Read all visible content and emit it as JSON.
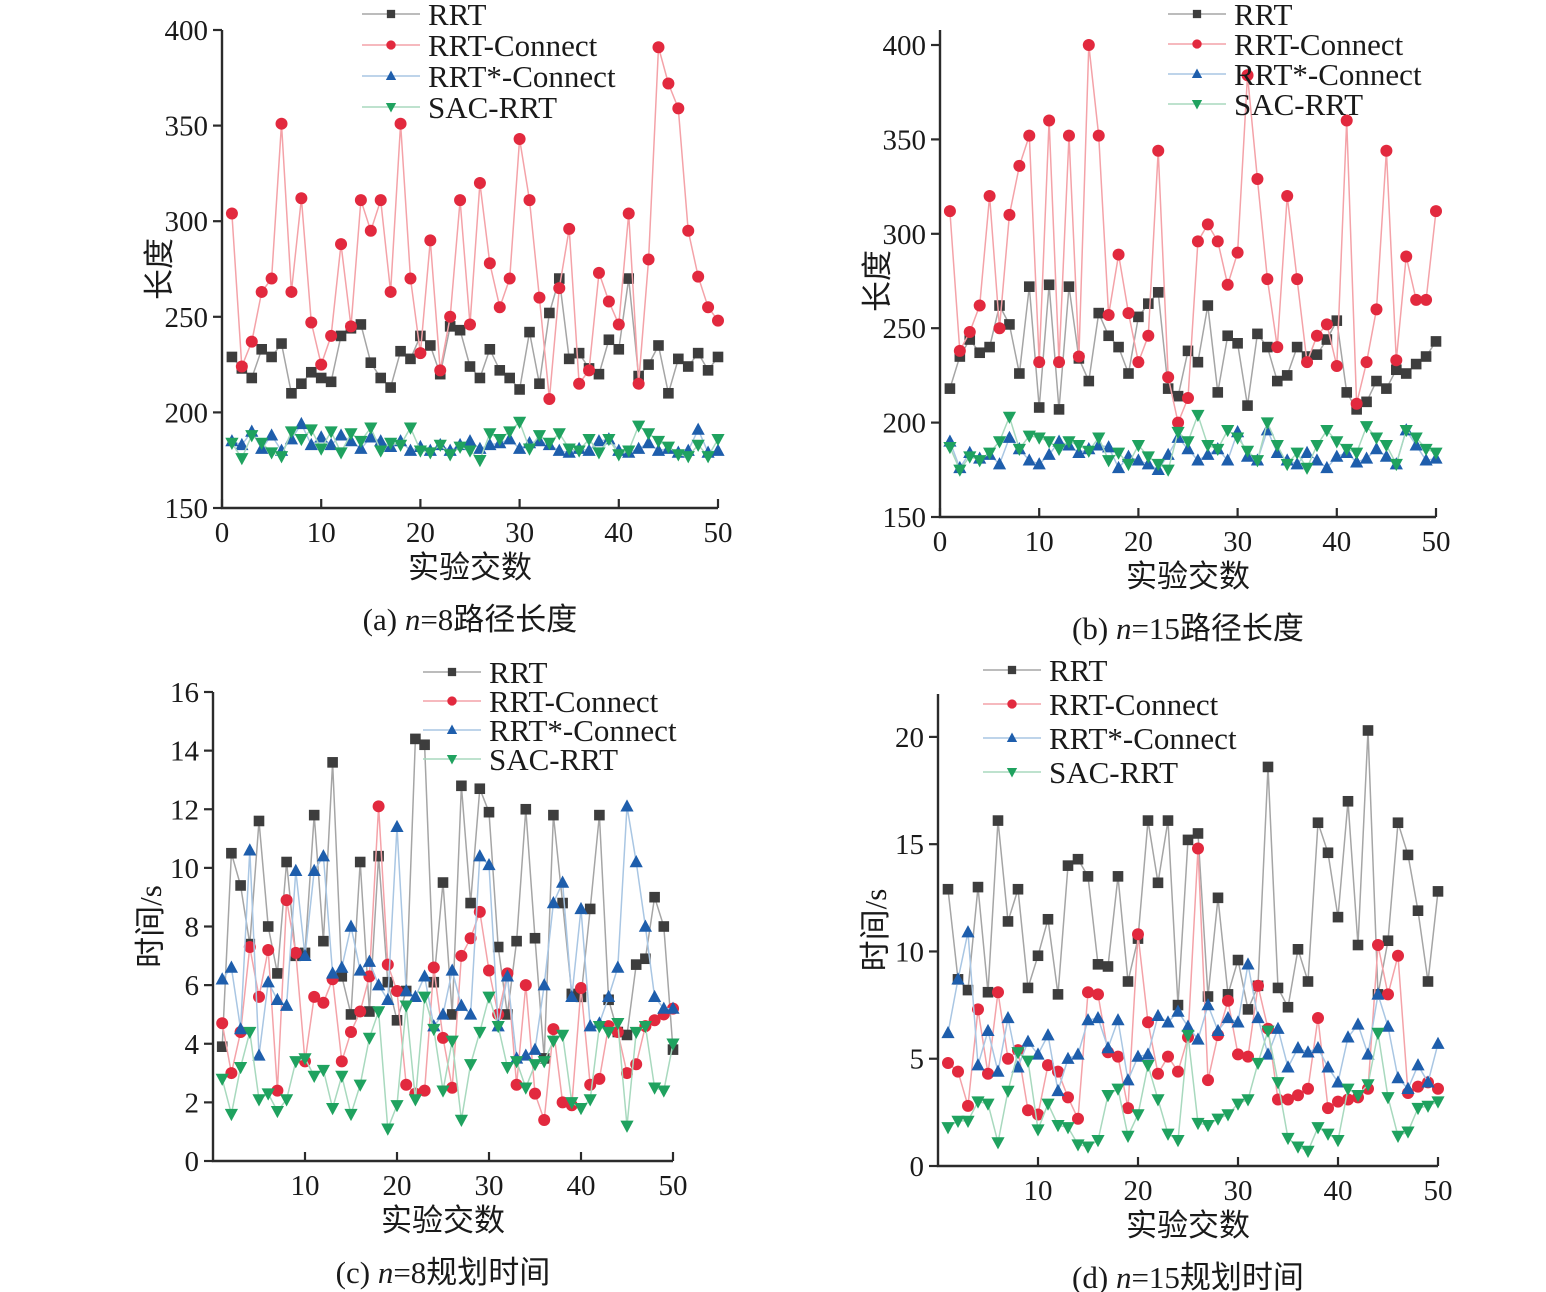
{
  "figure": {
    "background": "#ffffff",
    "legend_labels": [
      "RRT",
      "RRT-Connect",
      "RRT*-Connect",
      "SAC-RRT"
    ],
    "series_styles": [
      {
        "name": "RRT",
        "marker": "square",
        "marker_color": "#3d3d3d",
        "line_color": "#a5a5a5"
      },
      {
        "name": "RRT-Connect",
        "marker": "circle",
        "marker_color": "#e2293e",
        "line_color": "#f4a2a8"
      },
      {
        "name": "RRT*-Connect",
        "marker": "triangle-up",
        "marker_color": "#1e5eac",
        "line_color": "#a9c6e3"
      },
      {
        "name": "SAC-RRT",
        "marker": "triangle-down",
        "marker_color": "#1fa25f",
        "line_color": "#a8d9be"
      }
    ],
    "axis_color": "#2b2b2b"
  },
  "chart_data": [
    {
      "id": "a",
      "type": "line",
      "caption": {
        "prefix": "(a) ",
        "variable": "n",
        "suffix": "=8路径长度"
      },
      "xlabel": "实验交数",
      "ylabel": "长度",
      "x_start": 1,
      "xlim": [
        0,
        50
      ],
      "ylim": [
        150,
        400
      ],
      "xticks": [
        0,
        10,
        20,
        30,
        40,
        50
      ],
      "yticks": [
        150,
        200,
        250,
        300,
        350,
        400
      ],
      "series": [
        {
          "name": "RRT",
          "values": [
            229,
            223,
            218,
            233,
            229,
            236,
            210,
            215,
            221,
            218,
            216,
            240,
            244,
            246,
            226,
            218,
            213,
            232,
            228,
            240,
            235,
            220,
            245,
            243,
            224,
            218,
            233,
            222,
            218,
            212,
            242,
            215,
            252,
            270,
            228,
            231,
            223,
            220,
            238,
            233,
            270,
            219,
            225,
            235,
            210,
            228,
            224,
            231,
            222,
            229
          ]
        },
        {
          "name": "RRT-Connect",
          "values": [
            304,
            224,
            237,
            263,
            270,
            351,
            263,
            312,
            247,
            225,
            240,
            288,
            245,
            311,
            295,
            311,
            263,
            351,
            270,
            231,
            290,
            222,
            250,
            311,
            246,
            320,
            278,
            255,
            270,
            343,
            311,
            260,
            207,
            265,
            296,
            215,
            222,
            273,
            258,
            246,
            304,
            215,
            280,
            391,
            372,
            359,
            295,
            271,
            255,
            248
          ]
        },
        {
          "name": "RRT*-Connect",
          "values": [
            185,
            183,
            190,
            181,
            188,
            180,
            186,
            194,
            183,
            187,
            183,
            188,
            185,
            181,
            187,
            185,
            182,
            185,
            180,
            182,
            180,
            183,
            180,
            183,
            185,
            181,
            183,
            184,
            186,
            181,
            184,
            185,
            183,
            180,
            179,
            181,
            180,
            185,
            186,
            180,
            179,
            181,
            184,
            180,
            181,
            179,
            180,
            191,
            179,
            180
          ]
        },
        {
          "name": "SAC-RRT",
          "values": [
            184,
            176,
            188,
            184,
            179,
            177,
            190,
            186,
            191,
            181,
            190,
            179,
            189,
            185,
            192,
            180,
            184,
            183,
            192,
            180,
            179,
            183,
            178,
            182,
            180,
            175,
            189,
            186,
            190,
            195,
            181,
            188,
            184,
            189,
            181,
            180,
            186,
            179,
            186,
            178,
            180,
            193,
            189,
            185,
            182,
            178,
            177,
            183,
            177,
            186
          ]
        }
      ]
    },
    {
      "id": "b",
      "type": "line",
      "caption": {
        "prefix": "(b) ",
        "variable": "n",
        "suffix": "=15路径长度"
      },
      "xlabel": "实验交数",
      "ylabel": "长度",
      "x_start": 1,
      "xlim": [
        0,
        50
      ],
      "ylim": [
        150,
        400
      ],
      "xticks": [
        0,
        10,
        20,
        30,
        40,
        50
      ],
      "yticks": [
        150,
        200,
        250,
        300,
        350,
        400
      ],
      "series": [
        {
          "name": "RRT",
          "values": [
            218,
            235,
            244,
            237,
            240,
            262,
            252,
            226,
            272,
            208,
            273,
            207,
            272,
            234,
            222,
            258,
            246,
            240,
            226,
            256,
            263,
            269,
            218,
            214,
            238,
            232,
            262,
            216,
            246,
            242,
            209,
            247,
            240,
            222,
            225,
            240,
            235,
            236,
            244,
            254,
            216,
            207,
            211,
            222,
            218,
            228,
            226,
            231,
            235,
            243
          ]
        },
        {
          "name": "RRT-Connect",
          "values": [
            312,
            238,
            248,
            262,
            320,
            250,
            310,
            336,
            352,
            232,
            360,
            232,
            352,
            235,
            400,
            352,
            257,
            289,
            258,
            232,
            246,
            344,
            224,
            200,
            213,
            296,
            305,
            296,
            273,
            290,
            384,
            329,
            276,
            240,
            320,
            276,
            232,
            246,
            252,
            230,
            360,
            210,
            232,
            260,
            344,
            233,
            288,
            265,
            265,
            312
          ]
        },
        {
          "name": "RRT*-Connect",
          "values": [
            190,
            176,
            184,
            181,
            183,
            178,
            192,
            186,
            180,
            178,
            183,
            190,
            188,
            184,
            186,
            188,
            187,
            176,
            182,
            180,
            178,
            175,
            183,
            192,
            186,
            180,
            183,
            186,
            180,
            195,
            182,
            180,
            196,
            184,
            180,
            178,
            184,
            180,
            176,
            182,
            184,
            179,
            181,
            186,
            182,
            178,
            196,
            188,
            180,
            181
          ]
        },
        {
          "name": "SAC-RRT",
          "values": [
            187,
            175,
            182,
            180,
            184,
            190,
            203,
            186,
            193,
            192,
            190,
            186,
            190,
            188,
            185,
            192,
            180,
            184,
            178,
            188,
            182,
            178,
            175,
            195,
            190,
            204,
            188,
            186,
            196,
            192,
            185,
            180,
            200,
            188,
            178,
            184,
            176,
            188,
            196,
            190,
            186,
            184,
            198,
            192,
            188,
            178,
            196,
            192,
            186,
            184
          ]
        }
      ]
    },
    {
      "id": "c",
      "type": "line",
      "caption": {
        "prefix": "(c) ",
        "variable": "n",
        "suffix": "=8规划时间"
      },
      "xlabel": "实验交数",
      "ylabel": "时间/s",
      "x_start": 1,
      "xlim": [
        0,
        50
      ],
      "ylim": [
        0,
        16
      ],
      "xticks": [
        10,
        20,
        30,
        40,
        50
      ],
      "yticks": [
        0,
        2,
        4,
        6,
        8,
        10,
        12,
        14,
        16
      ],
      "series": [
        {
          "name": "RRT",
          "values": [
            3.9,
            10.5,
            9.4,
            7.4,
            11.6,
            8.0,
            6.4,
            10.2,
            7.0,
            7.1,
            11.8,
            7.5,
            13.6,
            6.3,
            5.0,
            10.2,
            5.1,
            10.4,
            6.1,
            4.8,
            5.8,
            14.4,
            14.2,
            6.1,
            9.5,
            5.0,
            12.8,
            8.8,
            12.7,
            11.9,
            7.3,
            5.0,
            7.5,
            12.0,
            7.6,
            3.5,
            11.8,
            8.8,
            5.7,
            5.6,
            8.6,
            11.8,
            5.5,
            4.4,
            4.3,
            6.7,
            6.9,
            9.0,
            8.0,
            3.8
          ]
        },
        {
          "name": "RRT-Connect",
          "values": [
            4.7,
            3.0,
            4.4,
            7.3,
            5.6,
            7.2,
            2.4,
            8.9,
            7.1,
            3.4,
            5.6,
            5.4,
            6.2,
            3.4,
            4.4,
            5.1,
            6.3,
            12.1,
            6.7,
            5.8,
            2.6,
            2.3,
            2.4,
            6.6,
            4.2,
            2.5,
            7.0,
            7.6,
            8.5,
            6.5,
            5.0,
            6.4,
            2.6,
            6.0,
            2.3,
            1.4,
            4.5,
            2.0,
            1.9,
            5.9,
            2.6,
            2.8,
            4.6,
            4.4,
            3.0,
            3.3,
            4.6,
            4.8,
            5.0,
            5.2
          ]
        },
        {
          "name": "RRT*-Connect",
          "values": [
            6.2,
            6.6,
            4.5,
            10.6,
            3.6,
            6.1,
            5.5,
            5.3,
            9.9,
            7.0,
            9.9,
            10.4,
            6.4,
            6.6,
            8.0,
            6.5,
            6.8,
            6.0,
            5.5,
            11.4,
            5.8,
            5.6,
            6.3,
            4.6,
            5.0,
            6.5,
            5.3,
            5.0,
            10.4,
            10.1,
            4.6,
            6.3,
            3.5,
            3.6,
            3.8,
            6.0,
            8.8,
            9.5,
            5.6,
            8.6,
            4.6,
            4.7,
            5.6,
            6.6,
            12.1,
            10.2,
            8.0,
            5.6,
            5.2,
            5.2
          ]
        },
        {
          "name": "SAC-RRT",
          "values": [
            2.8,
            1.6,
            3.2,
            4.4,
            2.1,
            2.3,
            1.7,
            2.1,
            3.4,
            3.5,
            2.9,
            3.1,
            1.8,
            2.9,
            1.6,
            2.6,
            4.2,
            5.1,
            1.1,
            1.9,
            5.3,
            2.1,
            5.6,
            4.5,
            2.4,
            4.1,
            1.4,
            3.3,
            4.4,
            5.6,
            4.6,
            3.2,
            3.4,
            2.5,
            3.3,
            3.4,
            4.1,
            4.3,
            2.0,
            1.8,
            2.1,
            4.6,
            4.4,
            4.7,
            1.2,
            4.4,
            4.6,
            2.5,
            2.4,
            4.0
          ]
        }
      ]
    },
    {
      "id": "d",
      "type": "line",
      "caption": {
        "prefix": "(d) ",
        "variable": "n",
        "suffix": "=15规划时间"
      },
      "xlabel": "实验交数",
      "ylabel": "时间/s",
      "x_start": 1,
      "xlim": [
        0,
        50
      ],
      "ylim": [
        0,
        22
      ],
      "xticks": [
        10,
        20,
        30,
        40,
        50
      ],
      "yticks": [
        0,
        5,
        10,
        15,
        20
      ],
      "series": [
        {
          "name": "RRT",
          "values": [
            12.9,
            8.7,
            8.2,
            13.0,
            8.1,
            16.1,
            11.4,
            12.9,
            8.3,
            9.8,
            11.5,
            8.0,
            14.0,
            14.3,
            13.5,
            9.4,
            9.3,
            13.5,
            8.6,
            10.6,
            16.1,
            13.2,
            16.1,
            7.5,
            15.2,
            15.5,
            7.9,
            12.5,
            8.0,
            9.6,
            7.3,
            8.4,
            18.6,
            8.3,
            7.4,
            10.1,
            8.6,
            16.0,
            14.6,
            11.6,
            17.0,
            10.3,
            20.3,
            8.0,
            10.5,
            16.0,
            14.5,
            11.9,
            8.6,
            12.8
          ]
        },
        {
          "name": "RRT-Connect",
          "values": [
            4.8,
            4.4,
            2.8,
            7.3,
            4.3,
            8.1,
            5.0,
            5.4,
            2.6,
            2.4,
            4.7,
            4.4,
            3.2,
            2.2,
            8.1,
            8.0,
            5.3,
            5.1,
            2.7,
            10.8,
            6.7,
            4.3,
            5.1,
            4.4,
            6.0,
            14.8,
            4.0,
            6.1,
            7.7,
            5.2,
            5.1,
            8.4,
            6.4,
            3.1,
            3.1,
            3.3,
            3.6,
            6.9,
            2.7,
            3.0,
            3.1,
            3.2,
            3.6,
            10.3,
            8.0,
            9.8,
            3.4,
            3.7,
            3.9,
            3.6
          ]
        },
        {
          "name": "RRT*-Connect",
          "values": [
            6.2,
            8.7,
            10.9,
            4.7,
            6.3,
            4.4,
            6.9,
            4.6,
            5.8,
            5.2,
            6.1,
            3.5,
            5.0,
            5.2,
            6.8,
            6.9,
            5.5,
            6.8,
            4.0,
            5.1,
            5.2,
            7.0,
            6.7,
            7.2,
            6.5,
            5.9,
            7.5,
            6.3,
            6.9,
            6.7,
            9.4,
            6.9,
            5.2,
            6.4,
            4.6,
            5.5,
            5.3,
            5.5,
            4.6,
            3.9,
            6.0,
            6.6,
            5.2,
            8.0,
            6.5,
            4.1,
            3.6,
            4.7,
            3.9,
            5.7
          ]
        },
        {
          "name": "SAC-RRT",
          "values": [
            1.8,
            2.1,
            2.1,
            3.0,
            2.9,
            1.1,
            3.5,
            5.3,
            4.9,
            1.7,
            2.9,
            1.9,
            1.8,
            1.0,
            0.9,
            1.2,
            3.3,
            3.6,
            1.4,
            2.4,
            4.7,
            3.1,
            1.5,
            1.2,
            6.1,
            2.0,
            1.9,
            2.2,
            2.4,
            2.9,
            3.1,
            4.8,
            6.3,
            3.9,
            1.3,
            0.9,
            0.7,
            1.8,
            1.5,
            1.2,
            3.6,
            3.3,
            3.8,
            6.2,
            3.2,
            1.4,
            1.6,
            2.7,
            2.8,
            3.0
          ]
        }
      ]
    }
  ]
}
